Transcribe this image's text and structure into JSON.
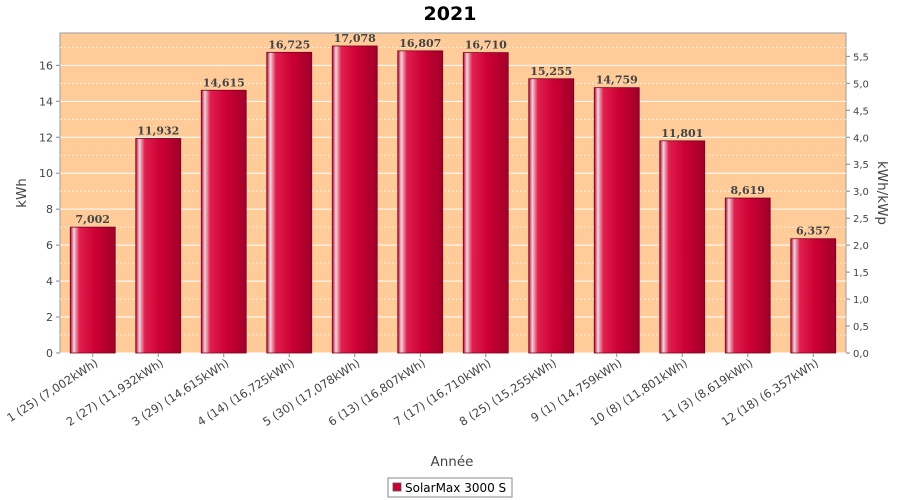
{
  "chart_data": {
    "type": "bar",
    "title": "2021",
    "xlabel": "Année",
    "ylabel": "kWh",
    "y2label": "kWh/kWp",
    "categories": [
      "1 (25)  (7,002kWh)",
      "2 (27)  (11,932kWh)",
      "3 (29)  (14,615kWh)",
      "4 (14)  (16,725kWh)",
      "5 (30)  (17,078kWh)",
      "6 (13)  (16,807kWh)",
      "7 (17)  (16,710kWh)",
      "8 (25)  (15,255kWh)",
      "9 (1)  (14,759kWh)",
      "10 (8)  (11,801kWh)",
      "11 (3)  (8,619kWh)",
      "12 (18)  (6,357kWh)"
    ],
    "series": [
      {
        "name": "SolarMax 3000 S",
        "values": [
          7.002,
          11.932,
          14.615,
          16.725,
          17.078,
          16.807,
          16.71,
          15.255,
          14.759,
          11.801,
          8.619,
          6.357
        ],
        "labels": [
          "7,002",
          "11,932",
          "14,615",
          "16,725",
          "17,078",
          "16,807",
          "16,710",
          "15,255",
          "14,759",
          "11,801",
          "8,619",
          "6,357"
        ]
      }
    ],
    "ylim": [
      0,
      17.8
    ],
    "yticks": [
      "0",
      "2",
      "4",
      "6",
      "8",
      "10",
      "12",
      "14",
      "16"
    ],
    "y2lim": [
      0,
      5.933
    ],
    "y2ticks": [
      "0,0",
      "0,5",
      "1,0",
      "1,5",
      "2,0",
      "2,5",
      "3,0",
      "3,5",
      "4,0",
      "4,5",
      "5,0",
      "5,5"
    ],
    "grid": true,
    "legend": "bottom-center",
    "colors": {
      "plot_background": "#ffcc99",
      "bar": "#cc0033",
      "bar_highlight": "#f2d6dc",
      "bar_dark": "#99001f",
      "gridline": "#ffffff"
    }
  }
}
